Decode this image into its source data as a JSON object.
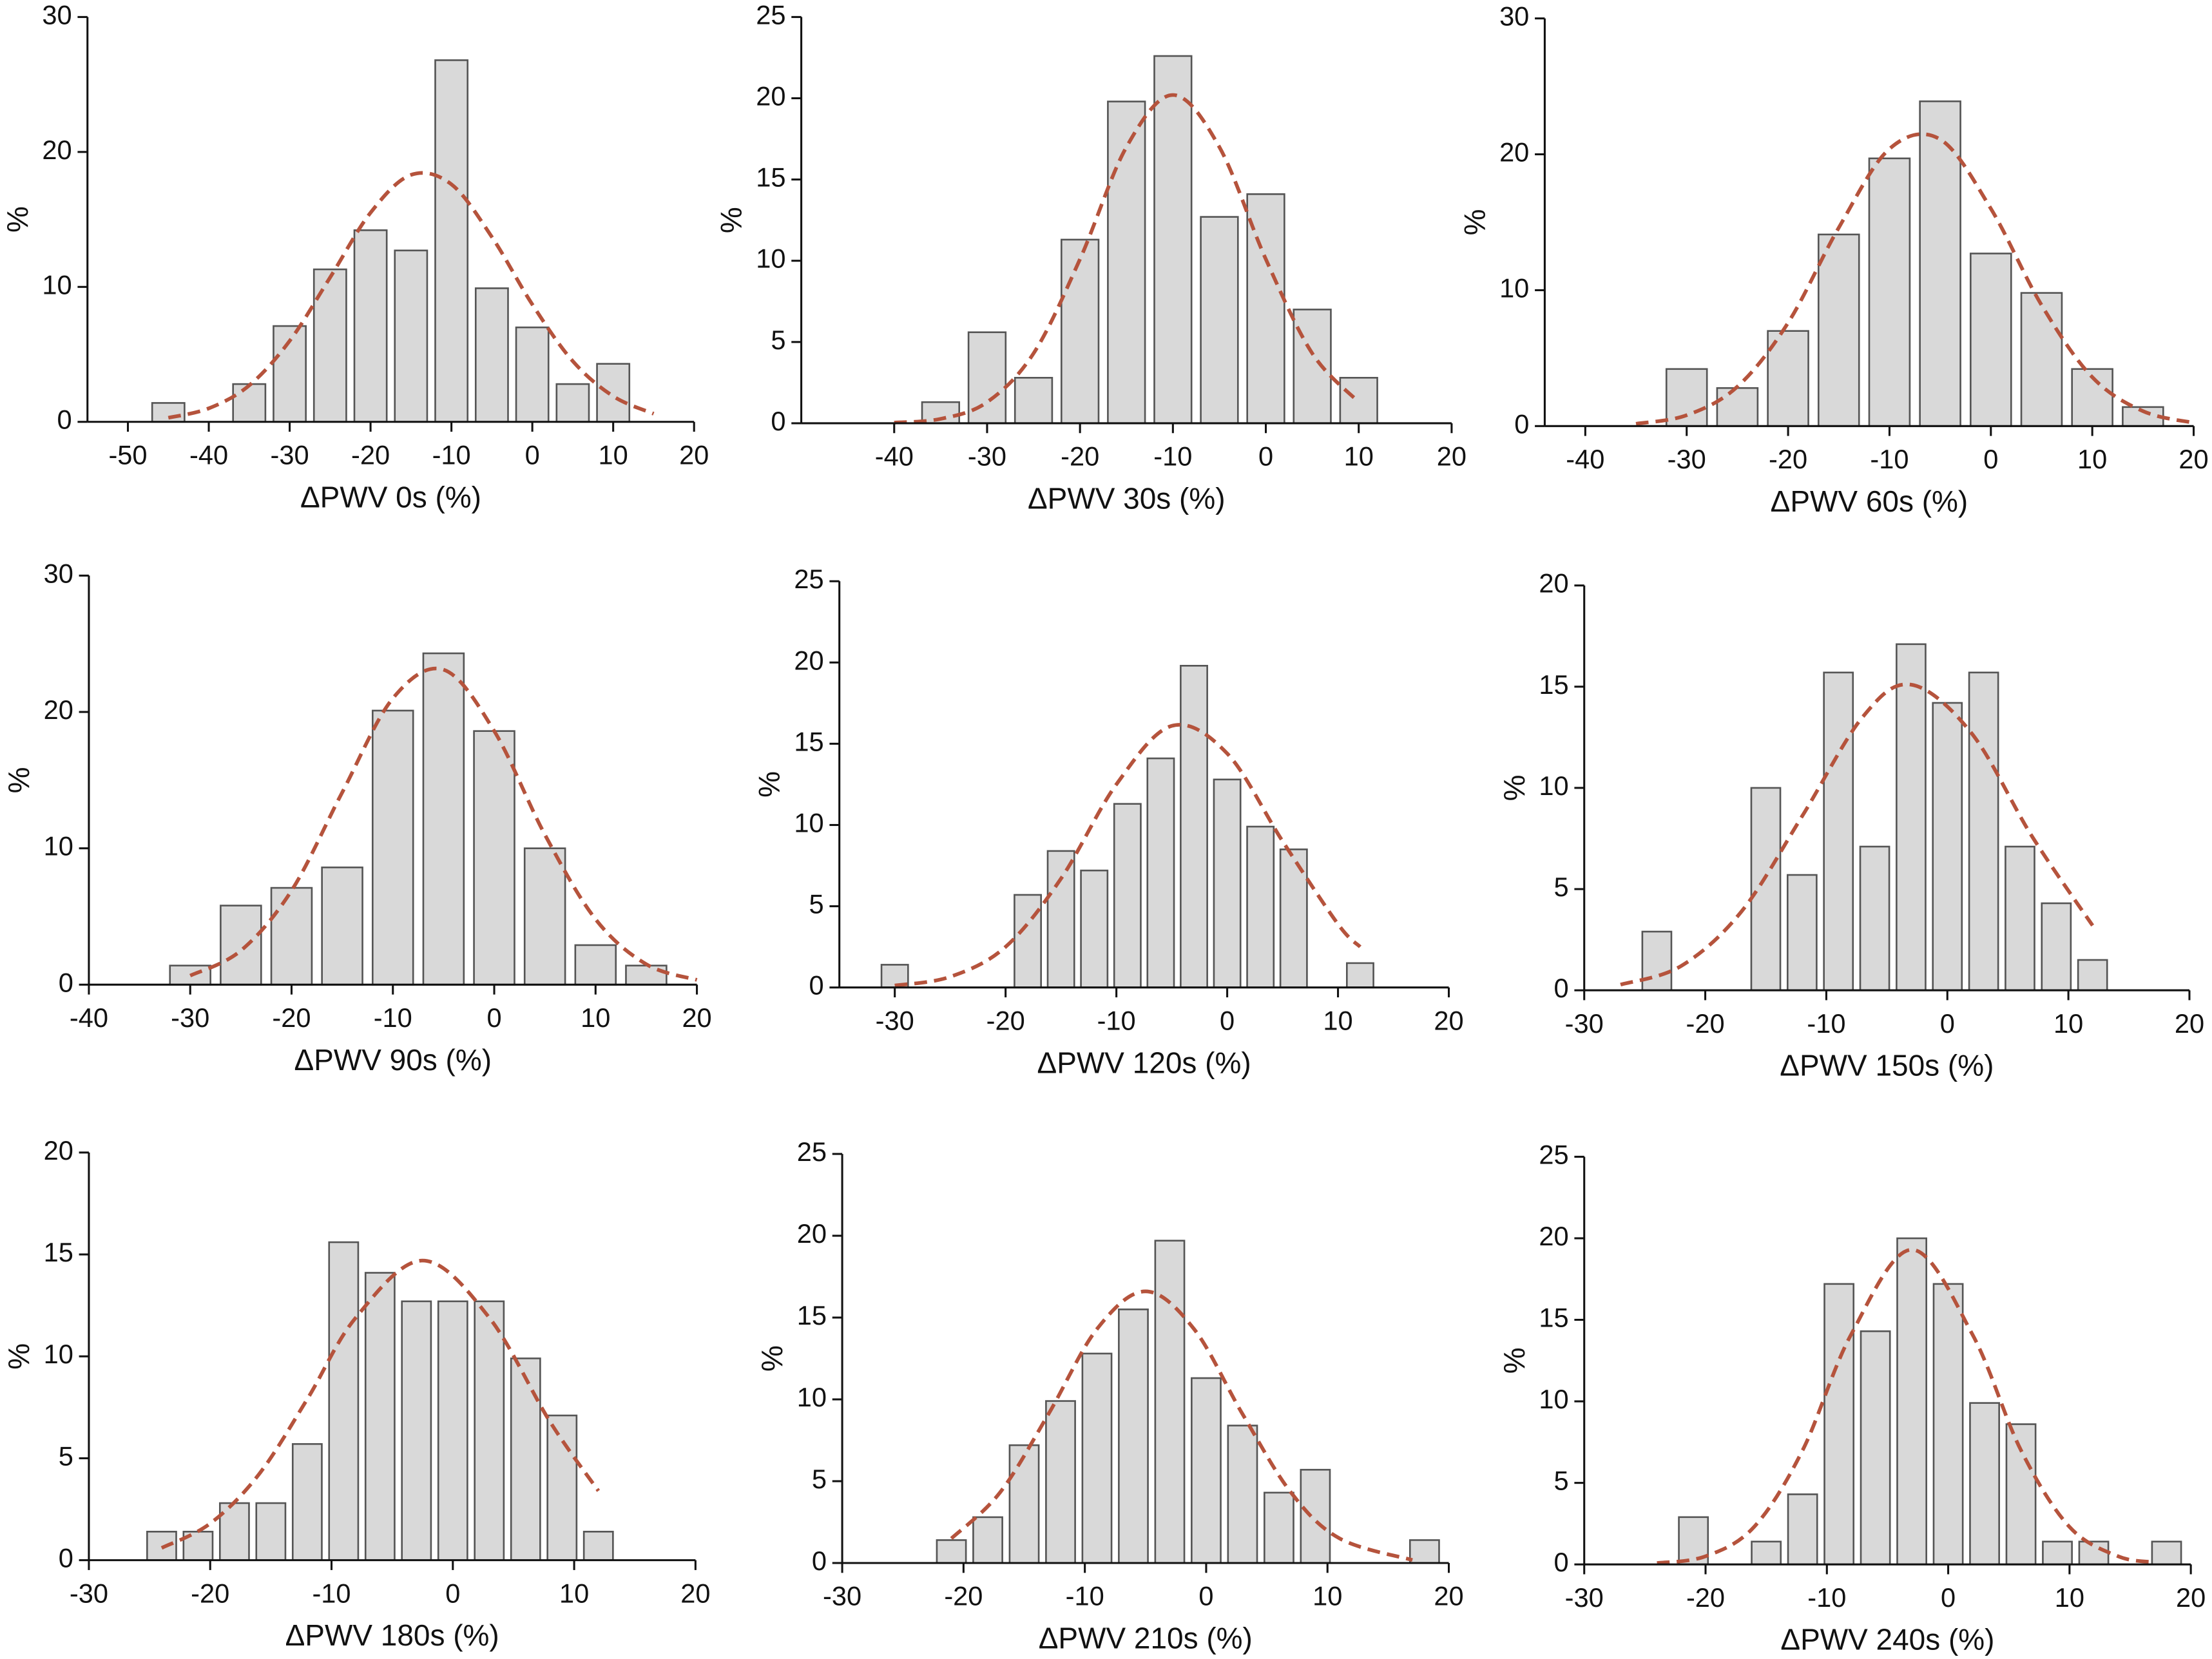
{
  "chart_data": [
    {
      "type": "histogram",
      "xlabel": "ΔPWV 0s (%)",
      "ylabel": "%",
      "bins": [
        -47.5,
        -42.5,
        -37.5,
        -32.5,
        -27.5,
        -22.5,
        -17.5,
        -12.5,
        -7.5,
        -2.5,
        2.5,
        7.5,
        12.5
      ],
      "values": [
        1.4,
        0,
        2.8,
        7.1,
        11.3,
        14.2,
        12.7,
        26.8,
        9.9,
        7.0,
        2.8,
        4.3
      ],
      "color": "#d9d9d9",
      "edgecolor": "#555555",
      "xlim": [
        -55,
        20
      ],
      "ylim": [
        0,
        30
      ],
      "xticks": [
        -50,
        -40,
        -30,
        -20,
        -10,
        0,
        10,
        20
      ],
      "yticks": [
        0,
        10,
        20,
        30
      ],
      "curve": {
        "x": [
          -45,
          -40,
          -35,
          -30,
          -25,
          -20,
          -15,
          -10,
          -5,
          0,
          5,
          10,
          15
        ],
        "values": [
          0.3,
          1.0,
          2.7,
          6.0,
          10.7,
          15.5,
          18.3,
          17.6,
          13.7,
          8.7,
          4.5,
          1.9,
          0.6
        ],
        "color": "#b5533c",
        "style": "dashed"
      }
    },
    {
      "type": "histogram",
      "xlabel": "ΔPWV 30s (%)",
      "ylabel": "%",
      "bins": [
        -37.5,
        -32.5,
        -27.5,
        -22.5,
        -17.5,
        -12.5,
        -7.5,
        -2.5,
        2.5,
        7.5,
        12.5
      ],
      "values": [
        1.3,
        5.6,
        2.8,
        11.3,
        19.8,
        22.6,
        12.7,
        14.1,
        7.0,
        2.8
      ],
      "color": "#d9d9d9",
      "edgecolor": "#555555",
      "xlim": [
        -50,
        20
      ],
      "ylim": [
        0,
        25
      ],
      "xticks": [
        -40,
        -30,
        -20,
        -10,
        0,
        10,
        20
      ],
      "yticks": [
        0,
        5,
        10,
        15,
        20,
        25
      ],
      "curve": {
        "x": [
          -40,
          -35,
          -30,
          -25,
          -20,
          -15,
          -10,
          -5,
          0,
          5,
          10
        ],
        "values": [
          0.04,
          0.27,
          1.3,
          4.3,
          10.1,
          17.0,
          20.2,
          17.0,
          10.1,
          4.3,
          1.3
        ],
        "color": "#b5533c",
        "style": "dashed"
      }
    },
    {
      "type": "histogram",
      "xlabel": "ΔPWV 60s (%)",
      "ylabel": "%",
      "bins": [
        -32.5,
        -27.5,
        -22.5,
        -17.5,
        -12.5,
        -7.5,
        -2.5,
        2.5,
        7.5,
        12.5,
        17.5
      ],
      "values": [
        4.2,
        2.8,
        7.0,
        14.1,
        19.7,
        23.9,
        12.7,
        9.8,
        4.2,
        1.4
      ],
      "color": "#d9d9d9",
      "edgecolor": "#555555",
      "xlim": [
        -44,
        20
      ],
      "ylim": [
        0,
        30
      ],
      "xticks": [
        -40,
        -30,
        -20,
        -10,
        0,
        10,
        20
      ],
      "yticks": [
        0,
        10,
        20,
        30
      ],
      "curve": {
        "x": [
          -35,
          -30,
          -25,
          -20,
          -15,
          -10,
          -5,
          0,
          5,
          10,
          15,
          20
        ],
        "values": [
          0.17,
          0.8,
          2.9,
          7.6,
          14.6,
          20.4,
          21.1,
          16.0,
          8.9,
          3.6,
          1.1,
          0.24
        ],
        "color": "#b5533c",
        "style": "dashed"
      }
    },
    {
      "type": "histogram",
      "xlabel": "ΔPWV 90s (%)",
      "ylabel": "%",
      "bins": [
        -32.5,
        -27.5,
        -22.5,
        -17.5,
        -12.5,
        -7.5,
        -2.5,
        2.5,
        7.5,
        12.5,
        17.5
      ],
      "values": [
        1.4,
        5.8,
        7.1,
        8.6,
        20.1,
        24.3,
        18.6,
        10.0,
        2.9,
        1.4
      ],
      "color": "#d9d9d9",
      "edgecolor": "#555555",
      "xlim": [
        -40,
        20
      ],
      "ylim": [
        0,
        30
      ],
      "xticks": [
        -40,
        -30,
        -20,
        -10,
        0,
        10,
        20
      ],
      "yticks": [
        0,
        10,
        20,
        30
      ],
      "curve": {
        "x": [
          -30,
          -25,
          -20,
          -15,
          -10,
          -5,
          0,
          5,
          10,
          15,
          20
        ],
        "values": [
          0.66,
          2.5,
          6.9,
          14.1,
          21.0,
          23.1,
          18.6,
          11.0,
          4.8,
          1.5,
          0.35
        ],
        "color": "#b5533c",
        "style": "dashed"
      }
    },
    {
      "type": "histogram",
      "xlabel": "ΔPWV 120s (%)",
      "ylabel": "%",
      "bins": [
        -31.5,
        -28.5,
        -25.5,
        -22.5,
        -19.5,
        -16.5,
        -13.5,
        -10.5,
        -7.5,
        -4.5,
        -1.5,
        1.5,
        4.5,
        7.5,
        10.5,
        13.5
      ],
      "values": [
        1.4,
        0,
        0,
        0,
        5.7,
        8.4,
        7.2,
        11.3,
        14.1,
        19.8,
        12.8,
        9.9,
        8.5,
        0,
        1.5
      ],
      "color": "#d9d9d9",
      "edgecolor": "#555555",
      "xlim": [
        -35,
        20
      ],
      "ylim": [
        0,
        25
      ],
      "xticks": [
        -30,
        -20,
        -10,
        0,
        10,
        20
      ],
      "yticks": [
        0,
        5,
        10,
        15,
        20,
        25
      ],
      "curve": {
        "x": [
          -30,
          -25,
          -20,
          -15,
          -10,
          -5,
          0,
          5,
          10,
          12
        ],
        "values": [
          0.12,
          0.66,
          2.5,
          6.7,
          12.5,
          16.1,
          14.4,
          9.0,
          3.9,
          2.5
        ],
        "color": "#b5533c",
        "style": "dashed"
      }
    },
    {
      "type": "histogram",
      "xlabel": "ΔPWV 150s (%)",
      "ylabel": "%",
      "bins": [
        -25.5,
        -22.5,
        -19.5,
        -16.5,
        -13.5,
        -10.5,
        -7.5,
        -4.5,
        -1.5,
        1.5,
        4.5,
        7.5,
        10.5,
        13.5
      ],
      "values": [
        2.9,
        0,
        0,
        10.0,
        5.7,
        15.7,
        7.1,
        17.1,
        14.2,
        15.7,
        7.1,
        4.3,
        1.5
      ],
      "color": "#d9d9d9",
      "edgecolor": "#555555",
      "xlim": [
        -30,
        20
      ],
      "ylim": [
        0,
        20
      ],
      "xticks": [
        -30,
        -20,
        -10,
        0,
        10,
        20
      ],
      "yticks": [
        0,
        5,
        10,
        15,
        20
      ],
      "curve": {
        "x": [
          -27,
          -22,
          -17,
          -12,
          -7,
          -3,
          2,
          7,
          12
        ],
        "values": [
          0.28,
          1.2,
          3.9,
          8.6,
          13.5,
          15.1,
          12.7,
          7.6,
          3.2
        ],
        "color": "#b5533c",
        "style": "dashed"
      }
    },
    {
      "type": "histogram",
      "xlabel": "ΔPWV 180s (%)",
      "ylabel": "%",
      "bins": [
        -25.5,
        -22.5,
        -19.5,
        -16.5,
        -13.5,
        -10.5,
        -7.5,
        -4.5,
        -1.5,
        1.5,
        4.5,
        7.5,
        10.5,
        13.5
      ],
      "values": [
        1.4,
        1.4,
        2.8,
        2.8,
        5.7,
        15.6,
        14.1,
        12.7,
        12.7,
        12.7,
        9.9,
        7.1,
        1.4
      ],
      "color": "#d9d9d9",
      "edgecolor": "#555555",
      "xlim": [
        -30,
        20
      ],
      "ylim": [
        0,
        20
      ],
      "xticks": [
        -30,
        -20,
        -10,
        0,
        10,
        20
      ],
      "yticks": [
        0,
        5,
        10,
        15,
        20
      ],
      "curve": {
        "x": [
          -24,
          -20,
          -16,
          -12,
          -8,
          -2.5,
          3,
          8,
          12
        ],
        "values": [
          0.6,
          1.8,
          4.2,
          7.9,
          11.9,
          14.7,
          11.9,
          6.8,
          3.4
        ],
        "color": "#b5533c",
        "style": "dashed"
      }
    },
    {
      "type": "histogram",
      "xlabel": "ΔPWV 210s (%)",
      "ylabel": "%",
      "bins": [
        -22.5,
        -19.5,
        -16.5,
        -13.5,
        -10.5,
        -7.5,
        -4.5,
        -1.5,
        1.5,
        4.5,
        7.5,
        10.5,
        13.5,
        16.5,
        19.5
      ],
      "values": [
        1.4,
        2.8,
        7.2,
        9.9,
        12.8,
        15.5,
        19.7,
        11.3,
        8.4,
        4.3,
        5.7,
        0,
        0,
        1.4
      ],
      "color": "#d9d9d9",
      "edgecolor": "#555555",
      "xlim": [
        -30,
        20
      ],
      "ylim": [
        0,
        25
      ],
      "xticks": [
        -30,
        -20,
        -10,
        0,
        10,
        20
      ],
      "yticks": [
        0,
        5,
        10,
        15,
        20,
        25
      ],
      "curve": {
        "x": [
          -21,
          -17,
          -13,
          -9,
          -5,
          -1,
          3,
          7,
          11,
          17
        ],
        "values": [
          1.5,
          4.3,
          9.1,
          14.3,
          16.6,
          14.3,
          9.1,
          4.3,
          1.5,
          0.18
        ],
        "color": "#b5533c",
        "style": "dashed"
      }
    },
    {
      "type": "histogram",
      "xlabel": "ΔPWV 240s (%)",
      "ylabel": "%",
      "bins": [
        -22.5,
        -19.5,
        -16.5,
        -13.5,
        -10.5,
        -7.5,
        -4.5,
        -1.5,
        1.5,
        4.5,
        7.5,
        10.5,
        13.5,
        16.5,
        19.5
      ],
      "values": [
        2.9,
        0,
        1.4,
        4.3,
        17.2,
        14.3,
        20.0,
        17.2,
        9.9,
        8.6,
        1.4,
        1.4,
        0,
        1.4
      ],
      "color": "#d9d9d9",
      "edgecolor": "#555555",
      "xlim": [
        -30,
        20
      ],
      "ylim": [
        0,
        25
      ],
      "xticks": [
        -30,
        -20,
        -10,
        0,
        10,
        20
      ],
      "yticks": [
        0,
        5,
        10,
        15,
        20,
        25
      ],
      "curve": {
        "x": [
          -24,
          -20,
          -16,
          -12,
          -8,
          -3,
          2,
          6,
          10,
          14,
          17
        ],
        "values": [
          0.08,
          0.5,
          2.3,
          7.0,
          14.1,
          19.3,
          14.1,
          7.0,
          2.3,
          0.5,
          0.13
        ],
        "color": "#b5533c",
        "style": "dashed"
      }
    }
  ]
}
